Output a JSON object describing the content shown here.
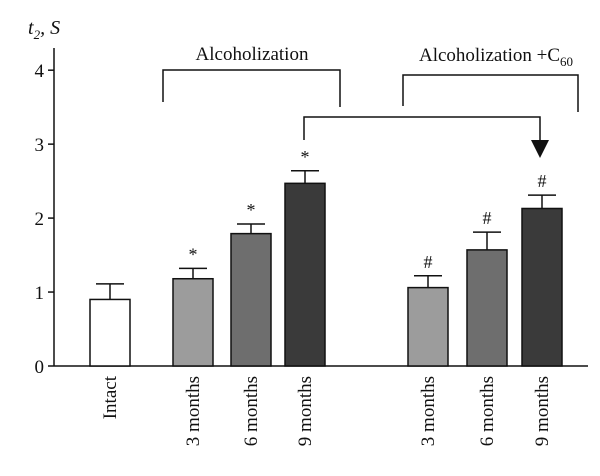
{
  "chart_data": {
    "type": "bar",
    "ylabel": "t₂, S",
    "ylabel_base": "t",
    "ylabel_sub": "2",
    "ylabel_unit": "S",
    "ylim": [
      0,
      4.3
    ],
    "yticks": [
      0,
      1,
      2,
      3,
      4
    ],
    "grid": false,
    "legend": "none",
    "groups": [
      {
        "label": "Alcoholization"
      },
      {
        "label": "Alcoholization +C₆₀",
        "label_base": "Alcoholization +C",
        "label_sub": "60"
      }
    ],
    "bars": [
      {
        "label": "Intact",
        "value": 0.9,
        "error": 0.21,
        "color": "#ffffff",
        "marker": ""
      },
      {
        "label": "3 months",
        "value": 1.18,
        "error": 0.14,
        "color": "#9c9c9c",
        "marker": "*"
      },
      {
        "label": "6 months",
        "value": 1.79,
        "error": 0.13,
        "color": "#6e6e6e",
        "marker": "*"
      },
      {
        "label": "9 months",
        "value": 2.47,
        "error": 0.17,
        "color": "#3a3a3a",
        "marker": "*"
      },
      {
        "label": "3 months",
        "value": 1.06,
        "error": 0.16,
        "color": "#9c9c9c",
        "marker": "#"
      },
      {
        "label": "6 months",
        "value": 1.57,
        "error": 0.24,
        "color": "#6e6e6e",
        "marker": "#"
      },
      {
        "label": "9 months",
        "value": 2.13,
        "error": 0.18,
        "color": "#3a3a3a",
        "marker": "#"
      }
    ]
  }
}
